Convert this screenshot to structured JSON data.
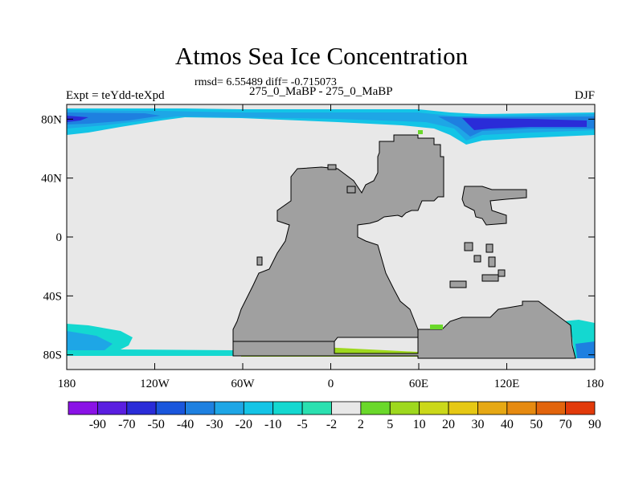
{
  "title": "Atmos Sea Ice Concentration",
  "stats": "rmsd= 6.55489 diff= -0.715073",
  "subtitle": "275_0_MaBP - 275_0_MaBP",
  "left_label": "Expt = teYdd-teXpd",
  "right_label": "DJF",
  "axes": {
    "x_ticks": [
      "180",
      "120W",
      "60W",
      "0",
      "60E",
      "120E",
      "180"
    ],
    "y_ticks": [
      "80N",
      "40N",
      "0",
      "40S",
      "80S"
    ]
  },
  "colors": {
    "land": "#a0a0a0",
    "zero_band": "#e8e8e8"
  },
  "colorbar": {
    "labels": [
      "-90",
      "-70",
      "-50",
      "-40",
      "-30",
      "-20",
      "-10",
      "-5",
      "-2",
      "2",
      "5",
      "10",
      "20",
      "30",
      "40",
      "50",
      "70",
      "90"
    ],
    "colors": [
      "#8a12e6",
      "#5a1ee0",
      "#2a2cd8",
      "#1a56dc",
      "#1e80e0",
      "#1ea6e6",
      "#14c4e6",
      "#14d8d0",
      "#2ae0b0",
      "#e8e8e8",
      "#6ad82a",
      "#9ed81e",
      "#cbd81a",
      "#e6c814",
      "#e6a814",
      "#e68a10",
      "#e2640c",
      "#e23a0a"
    ]
  }
}
